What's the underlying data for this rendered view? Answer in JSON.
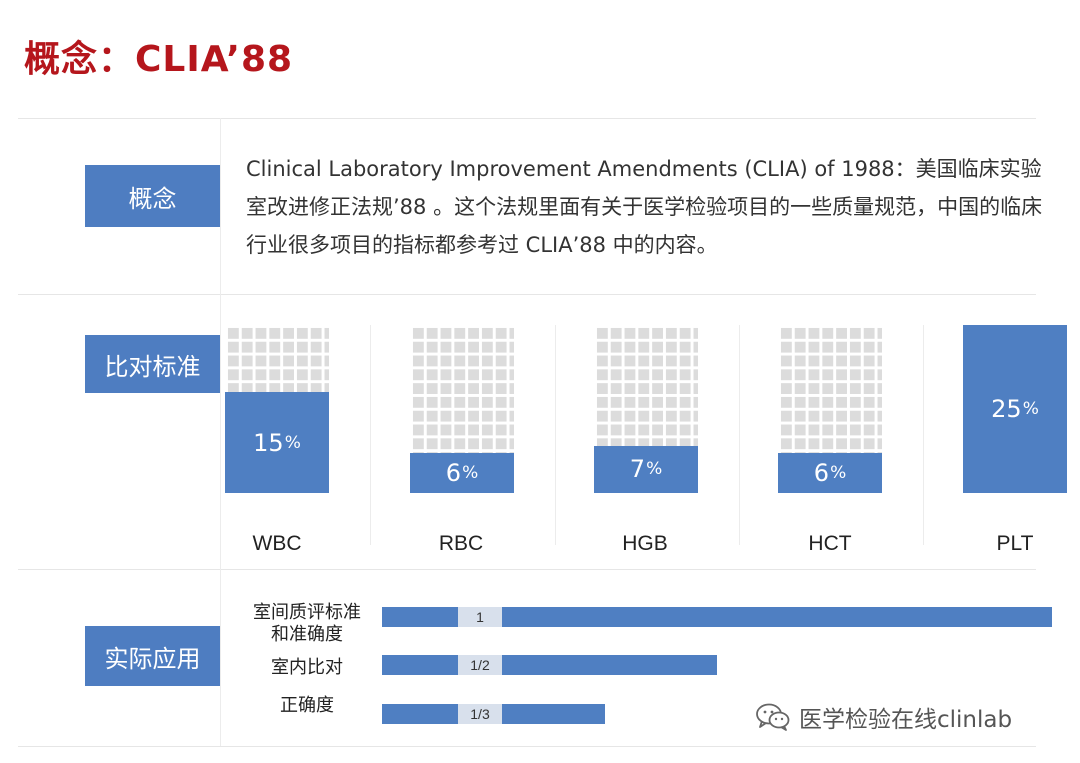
{
  "title": "概念：CLIA’88",
  "sections": {
    "concept": {
      "label": "概念",
      "text": "Clinical Laboratory Improvement Amendments (CLIA) of 1988：美国临床实验室改进修正法规’88 。这个法规里面有关于医学检验项目的一些质量规范，中国的临床行业很多项目的指标都参考过 CLIA’88 中的内容。"
    },
    "standard": {
      "label": "比对标准",
      "items": [
        {
          "name": "WBC",
          "value": "15",
          "unit": "%",
          "fraction": 0.15
        },
        {
          "name": "RBC",
          "value": "6",
          "unit": "%",
          "fraction": 0.06
        },
        {
          "name": "HGB",
          "value": "7",
          "unit": "%",
          "fraction": 0.07
        },
        {
          "name": "HCT",
          "value": "6",
          "unit": "%",
          "fraction": 0.06
        },
        {
          "name": "PLT",
          "value": "25",
          "unit": "%",
          "fraction": 0.25
        }
      ]
    },
    "application": {
      "label": "实际应用",
      "rows": [
        {
          "label_line1": "室间质评标准",
          "label_line2": "和准确度",
          "tag": "1",
          "fraction": 1
        },
        {
          "label_line1": "室内比对",
          "label_line2": "",
          "tag": "1/2",
          "fraction": 0.5
        },
        {
          "label_line1": "正确度",
          "label_line2": "",
          "tag": "1/3",
          "fraction": 0.333
        }
      ]
    }
  },
  "watermark": {
    "text": "医学检验在线clinlab",
    "icon": "wechat-icon"
  },
  "colors": {
    "title": "#b5161c",
    "accent": "#4e7dc1",
    "dots": "#dcdcdc"
  }
}
